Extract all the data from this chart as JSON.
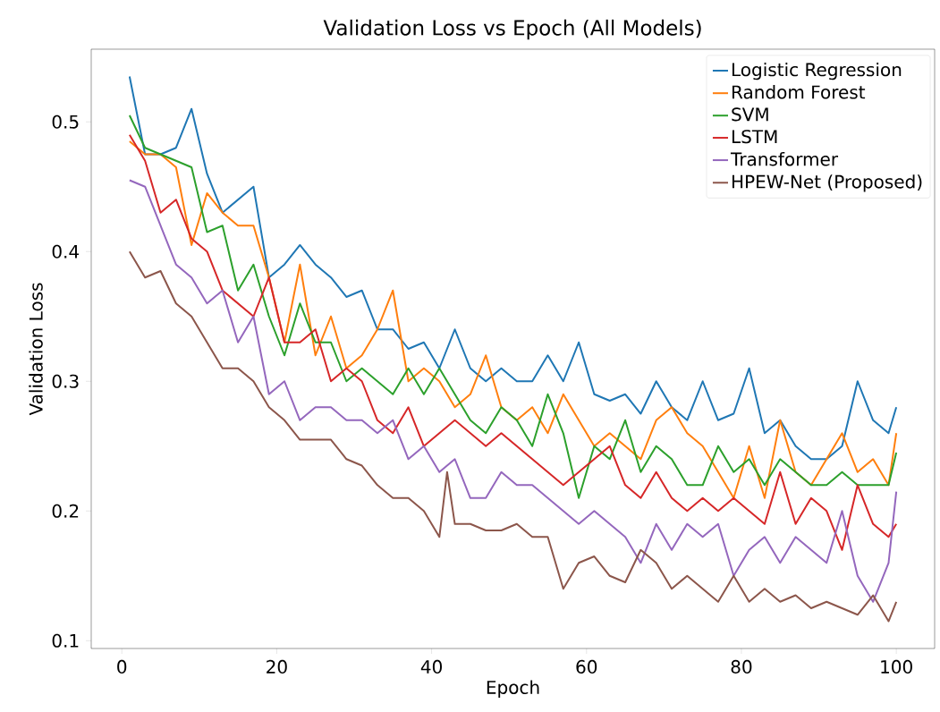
{
  "chart_data": {
    "type": "line",
    "title": "Validation Loss vs Epoch (All Models)",
    "xlabel": "Epoch",
    "ylabel": "Validation Loss",
    "x": [
      1,
      3,
      5,
      7,
      9,
      11,
      13,
      15,
      17,
      19,
      21,
      23,
      25,
      27,
      29,
      31,
      33,
      35,
      37,
      39,
      41,
      43,
      45,
      47,
      49,
      51,
      53,
      55,
      57,
      59,
      61,
      63,
      65,
      67,
      69,
      71,
      73,
      75,
      77,
      79,
      81,
      83,
      85,
      87,
      89,
      91,
      93,
      95,
      97,
      99,
      100
    ],
    "series": [
      {
        "name": "Logistic Regression",
        "color": "#1f77b4",
        "values": [
          0.535,
          0.475,
          0.475,
          0.48,
          0.51,
          0.46,
          0.43,
          0.44,
          0.45,
          0.38,
          0.39,
          0.405,
          0.39,
          0.38,
          0.365,
          0.37,
          0.34,
          0.34,
          0.325,
          0.33,
          0.31,
          0.34,
          0.31,
          0.3,
          0.31,
          0.3,
          0.3,
          0.32,
          0.3,
          0.33,
          0.29,
          0.285,
          0.29,
          0.275,
          0.3,
          0.28,
          0.27,
          0.3,
          0.27,
          0.275,
          0.31,
          0.26,
          0.27,
          0.25,
          0.24,
          0.24,
          0.25,
          0.3,
          0.27,
          0.26,
          0.28
        ]
      },
      {
        "name": "Random Forest",
        "color": "#ff7f0e",
        "values": [
          0.485,
          0.475,
          0.475,
          0.465,
          0.405,
          0.445,
          0.43,
          0.42,
          0.42,
          0.38,
          0.33,
          0.39,
          0.32,
          0.35,
          0.31,
          0.32,
          0.34,
          0.37,
          0.3,
          0.31,
          0.3,
          0.28,
          0.29,
          0.32,
          0.28,
          0.27,
          0.28,
          0.26,
          0.29,
          0.27,
          0.25,
          0.26,
          0.25,
          0.24,
          0.27,
          0.28,
          0.26,
          0.25,
          0.23,
          0.21,
          0.25,
          0.21,
          0.27,
          0.23,
          0.22,
          0.24,
          0.26,
          0.23,
          0.24,
          0.22,
          0.26
        ]
      },
      {
        "name": "SVM",
        "color": "#2ca02c",
        "values": [
          0.505,
          0.48,
          0.475,
          0.47,
          0.465,
          0.415,
          0.42,
          0.37,
          0.39,
          0.35,
          0.32,
          0.36,
          0.33,
          0.33,
          0.3,
          0.31,
          0.3,
          0.29,
          0.31,
          0.29,
          0.31,
          0.29,
          0.27,
          0.26,
          0.28,
          0.27,
          0.25,
          0.29,
          0.26,
          0.21,
          0.25,
          0.24,
          0.27,
          0.23,
          0.25,
          0.24,
          0.22,
          0.22,
          0.25,
          0.23,
          0.24,
          0.22,
          0.24,
          0.23,
          0.22,
          0.22,
          0.23,
          0.22,
          0.22,
          0.22,
          0.245
        ]
      },
      {
        "name": "LSTM",
        "color": "#d62728",
        "values": [
          0.49,
          0.47,
          0.43,
          0.44,
          0.41,
          0.4,
          0.37,
          0.36,
          0.35,
          0.38,
          0.33,
          0.33,
          0.34,
          0.3,
          0.31,
          0.3,
          0.27,
          0.26,
          0.28,
          0.25,
          0.26,
          0.27,
          0.26,
          0.25,
          0.26,
          0.25,
          0.24,
          0.23,
          0.22,
          0.23,
          0.24,
          0.25,
          0.22,
          0.21,
          0.23,
          0.21,
          0.2,
          0.21,
          0.2,
          0.21,
          0.2,
          0.19,
          0.23,
          0.19,
          0.21,
          0.2,
          0.17,
          0.22,
          0.19,
          0.18,
          0.19
        ]
      },
      {
        "name": "Transformer",
        "color": "#9467bd",
        "values": [
          0.455,
          0.45,
          0.42,
          0.39,
          0.38,
          0.36,
          0.37,
          0.33,
          0.35,
          0.29,
          0.3,
          0.27,
          0.28,
          0.28,
          0.27,
          0.27,
          0.26,
          0.27,
          0.24,
          0.25,
          0.23,
          0.24,
          0.21,
          0.21,
          0.23,
          0.22,
          0.22,
          0.21,
          0.2,
          0.19,
          0.2,
          0.19,
          0.18,
          0.16,
          0.19,
          0.17,
          0.19,
          0.18,
          0.19,
          0.15,
          0.17,
          0.18,
          0.16,
          0.18,
          0.17,
          0.16,
          0.2,
          0.15,
          0.13,
          0.16,
          0.215
        ]
      },
      {
        "name": "HPEW-Net (Proposed)",
        "color": "#8c564b",
        "x": [
          1,
          3,
          5,
          7,
          9,
          11,
          13,
          15,
          17,
          19,
          21,
          23,
          25,
          27,
          29,
          31,
          33,
          35,
          37,
          39,
          41,
          42,
          43,
          45,
          47,
          49,
          51,
          53,
          55,
          57,
          59,
          61,
          63,
          65,
          67,
          69,
          71,
          73,
          75,
          77,
          79,
          81,
          83,
          85,
          87,
          89,
          91,
          93,
          95,
          97,
          99,
          100
        ],
        "values": [
          0.4,
          0.38,
          0.385,
          0.36,
          0.35,
          0.33,
          0.31,
          0.31,
          0.3,
          0.28,
          0.27,
          0.255,
          0.255,
          0.255,
          0.24,
          0.235,
          0.22,
          0.21,
          0.21,
          0.2,
          0.18,
          0.23,
          0.19,
          0.19,
          0.185,
          0.185,
          0.19,
          0.18,
          0.18,
          0.14,
          0.16,
          0.165,
          0.15,
          0.145,
          0.17,
          0.16,
          0.14,
          0.15,
          0.14,
          0.13,
          0.15,
          0.13,
          0.14,
          0.13,
          0.135,
          0.125,
          0.13,
          0.125,
          0.12,
          0.135,
          0.115,
          0.13
        ]
      }
    ],
    "xlim": [
      -3.95,
      104.95
    ],
    "ylim": [
      0.094,
      0.556
    ],
    "xticks": [
      0,
      20,
      40,
      60,
      80,
      100
    ],
    "yticks": [
      0.1,
      0.2,
      0.3,
      0.4,
      0.5
    ],
    "legend": "top right"
  }
}
